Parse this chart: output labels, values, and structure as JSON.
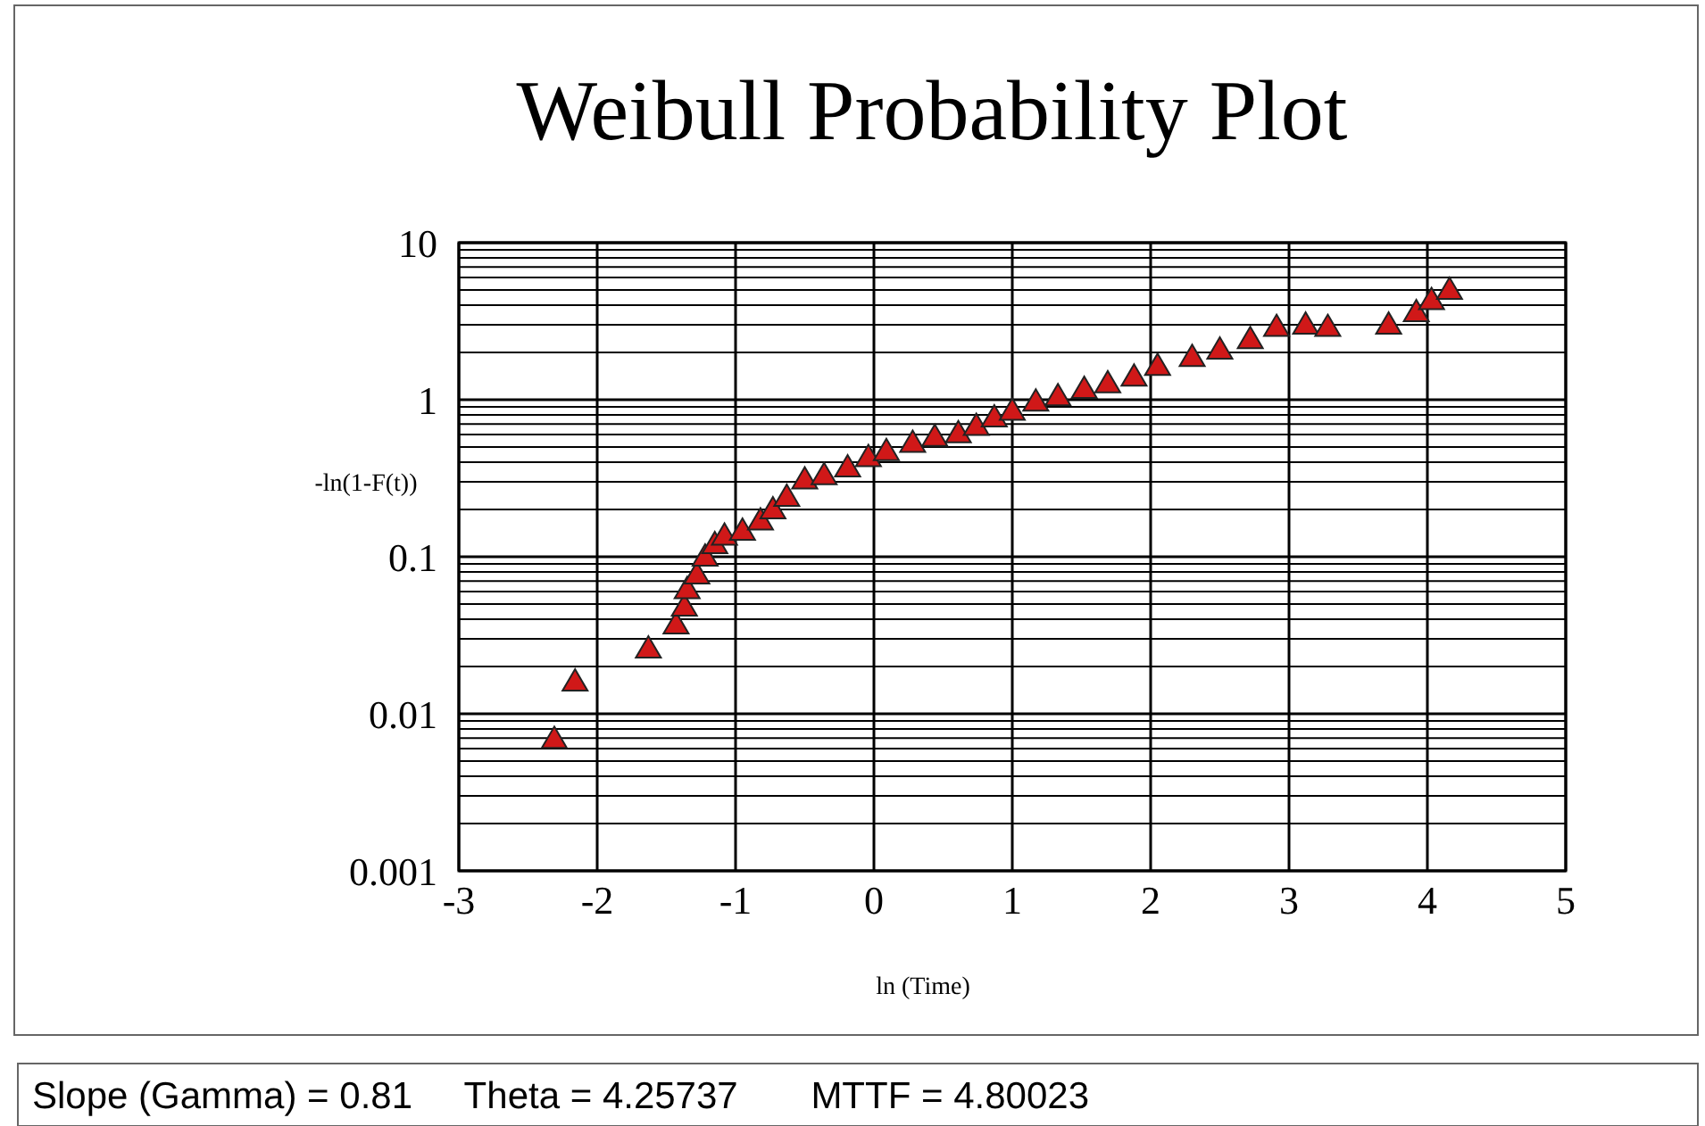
{
  "chart_data": {
    "type": "scatter",
    "title": "Weibull Probability Plot",
    "xlabel": "ln (Time)",
    "ylabel": "-ln(1-F(t))",
    "log": "y",
    "grid": true,
    "marker": "triangle",
    "xlim": [
      -3,
      5
    ],
    "xticks": [
      -3,
      -2,
      -1,
      0,
      1,
      2,
      3,
      4,
      5
    ],
    "ylim": [
      0.001,
      10
    ],
    "yticks": [
      0.001,
      0.01,
      0.1,
      1,
      10
    ],
    "annotations": [
      "Slope (Gamma) = 0.81     Theta = 4.25737       MTTF = 4.80023"
    ],
    "series": [
      {
        "color": "#d01818",
        "x": [
          -2.31,
          -2.16,
          -1.63,
          -1.43,
          -1.37,
          -1.35,
          -1.28,
          -1.22,
          -1.15,
          -1.08,
          -0.95,
          -0.82,
          -0.73,
          -0.63,
          -0.5,
          -0.36,
          -0.19,
          -0.04,
          0.09,
          0.28,
          0.44,
          0.61,
          0.74,
          0.87,
          1.0,
          1.17,
          1.33,
          1.52,
          1.69,
          1.88,
          2.05,
          2.3,
          2.5,
          2.72,
          2.91,
          3.12,
          3.28,
          3.72,
          3.92,
          4.03,
          4.16
        ],
        "values": [
          0.0069,
          0.016,
          0.026,
          0.037,
          0.048,
          0.062,
          0.077,
          0.1,
          0.12,
          0.136,
          0.146,
          0.17,
          0.2,
          0.24,
          0.31,
          0.33,
          0.37,
          0.43,
          0.47,
          0.53,
          0.58,
          0.61,
          0.68,
          0.77,
          0.85,
          0.97,
          1.05,
          1.17,
          1.27,
          1.4,
          1.64,
          1.87,
          2.08,
          2.43,
          2.9,
          3.0,
          2.9,
          3.0,
          3.6,
          4.3,
          5.0
        ]
      }
    ]
  }
}
